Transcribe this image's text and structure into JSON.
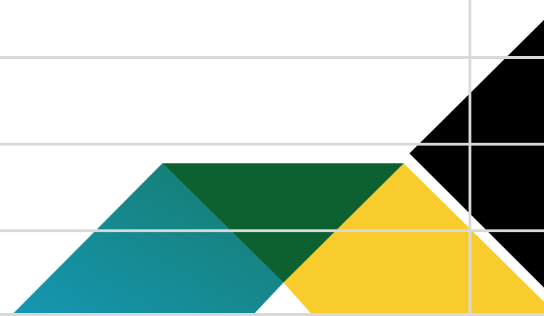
{
  "graphic": {
    "background_color": "#ffffff",
    "grid_line_color": "#d9d9d9",
    "shapes": [
      {
        "name": "teal-triangle",
        "color_start": "#1597b3",
        "color_end": "#167a6a"
      },
      {
        "name": "green-triangle",
        "color": "#0d6030"
      },
      {
        "name": "yellow-triangle",
        "color": "#f8cc2c"
      },
      {
        "name": "black-triangle",
        "color": "#000000"
      }
    ]
  }
}
